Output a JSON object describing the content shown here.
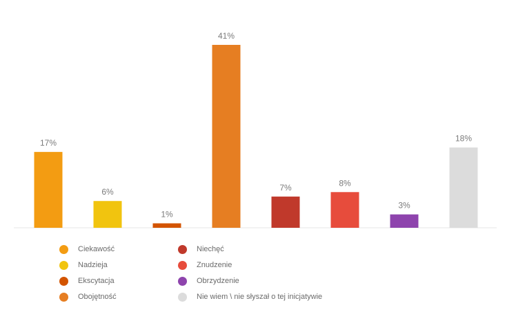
{
  "chart_data": {
    "type": "bar",
    "categories": [
      "Ciekawość",
      "Nadzieja",
      "Ekscytacja",
      "Obojętność",
      "Niechęć",
      "Znudzenie",
      "Obrzydzenie",
      "Nie wiem \\ nie słyszał o tej inicjatywie"
    ],
    "values": [
      17,
      6,
      1,
      41,
      7,
      8,
      3,
      18
    ],
    "value_labels": [
      "17%",
      "6%",
      "1%",
      "41%",
      "7%",
      "8%",
      "3%",
      "18%"
    ],
    "colors": [
      "#f39c12",
      "#f1c40f",
      "#d35400",
      "#e67e22",
      "#c0392b",
      "#e74c3c",
      "#8e44ad",
      "#dcdcdc"
    ],
    "unit": "%",
    "ylim": [
      0,
      41
    ],
    "grid": false,
    "legend_position": "bottom-left"
  }
}
